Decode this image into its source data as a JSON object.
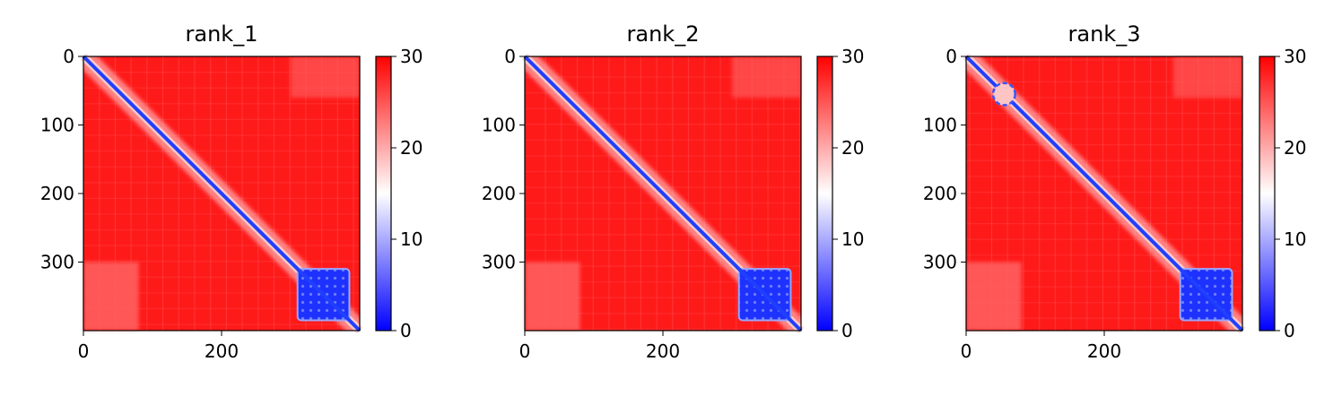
{
  "chart_data": [
    {
      "type": "heatmap",
      "title": "rank_1",
      "xlabel": "",
      "ylabel": "",
      "size": 400,
      "x_ticks": [
        "0",
        "200"
      ],
      "y_ticks": [
        "0",
        "100",
        "200",
        "300"
      ],
      "colorbar": {
        "min": 0,
        "max": 30,
        "ticks": [
          "0",
          "10",
          "20",
          "30"
        ],
        "colors": [
          "#0000ff",
          "#ffffff",
          "#ff0000"
        ]
      },
      "domain_block": [
        310,
        385
      ],
      "features": []
    },
    {
      "type": "heatmap",
      "title": "rank_2",
      "xlabel": "",
      "ylabel": "",
      "size": 400,
      "x_ticks": [
        "0",
        "200"
      ],
      "y_ticks": [
        "0",
        "100",
        "200",
        "300"
      ],
      "colorbar": {
        "min": 0,
        "max": 30,
        "ticks": [
          "0",
          "10",
          "20",
          "30"
        ],
        "colors": [
          "#0000ff",
          "#ffffff",
          "#ff0000"
        ]
      },
      "domain_block": [
        310,
        385
      ],
      "features": []
    },
    {
      "type": "heatmap",
      "title": "rank_3",
      "xlabel": "",
      "ylabel": "",
      "size": 400,
      "x_ticks": [
        "0",
        "200"
      ],
      "y_ticks": [
        "0",
        "100",
        "200",
        "300"
      ],
      "colorbar": {
        "min": 0,
        "max": 30,
        "ticks": [
          "0",
          "10",
          "20",
          "30"
        ],
        "colors": [
          "#0000ff",
          "#ffffff",
          "#ff0000"
        ]
      },
      "domain_block": [
        310,
        385
      ],
      "features": [
        {
          "center": [
            55,
            55
          ],
          "radius": 16
        }
      ]
    }
  ]
}
